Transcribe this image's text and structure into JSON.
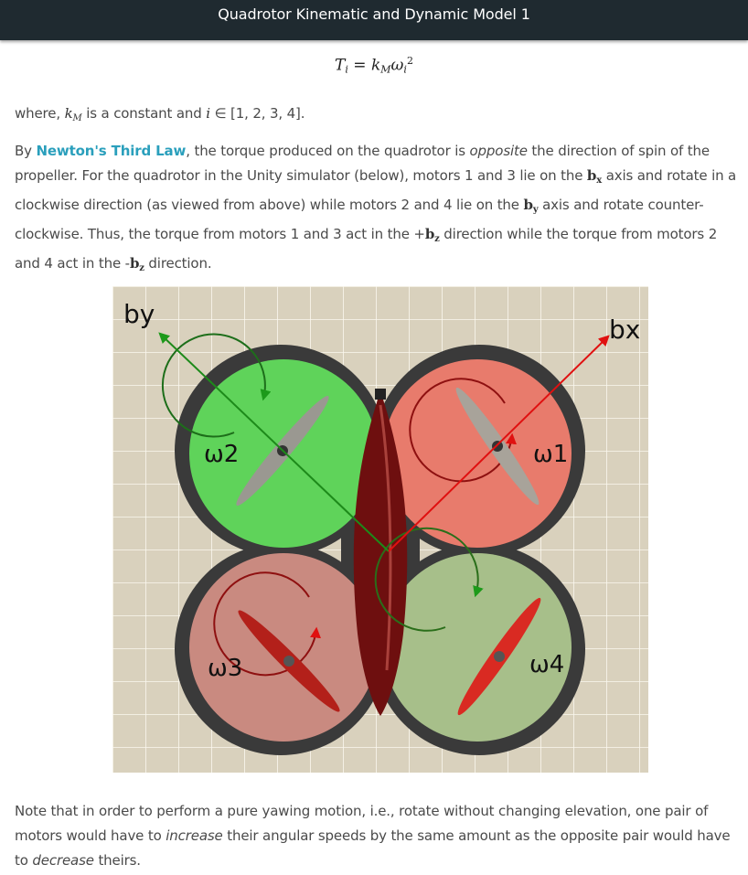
{
  "header": {
    "title": "Quadrotor Kinematic and Dynamic Model 1"
  },
  "equation": {
    "lhs": "T",
    "lhs_sub": "i",
    "rhs_k": "k",
    "rhs_k_sub": "M",
    "rhs_omega": "ω",
    "rhs_omega_sub": "i",
    "rhs_omega_sup": "2"
  },
  "para1": {
    "prefix": "where, ",
    "k": "k",
    "k_sub": "M",
    "mid": " is a constant and ",
    "i_sym": "i",
    "suffix": " ∈ [1, 2, 3, 4]."
  },
  "para2": {
    "by": "By ",
    "link": "Newton's Third Law",
    "t1": ", the torque produced on the quadrotor is ",
    "opposite": "opposite",
    "t2": " the direction of spin of the propeller. For the quadrotor in the Unity simulator (below), motors 1 and 3 lie on the ",
    "bx": "b",
    "bx_sub": "x",
    "t3": " axis and rotate in a clockwise direction (as viewed from above) while motors 2 and 4 lie on the ",
    "by_sym": "b",
    "by_sub": "y",
    "t4": " axis and rotate counter-clockwise. Thus, the torque from motors 1 and 3 act in the +",
    "bz1": "b",
    "bz1_sub": "z",
    "t5": " direction while the torque from motors 2 and 4 act in the -",
    "bz2": "b",
    "bz2_sub": "z",
    "t6": " direction."
  },
  "figure": {
    "label_by": "by",
    "label_bx": "bx",
    "omega1": "ω1",
    "omega2": "ω2",
    "omega3": "ω3",
    "omega4": "ω4",
    "colors": {
      "green": "#5fd35a",
      "red": "#e87b6c",
      "pale_red": "#c98a80",
      "pale_green": "#a7bf8a",
      "bg": "#d9d1bd"
    }
  },
  "para3": {
    "t1": "Note that in order to perform a pure yawing motion, i.e., rotate without changing elevation, one pair of motors would have to ",
    "increase": "increase",
    "t2": " their angular speeds by the same amount as the opposite pair would have to ",
    "decrease": "decrease",
    "t3": " theirs."
  }
}
